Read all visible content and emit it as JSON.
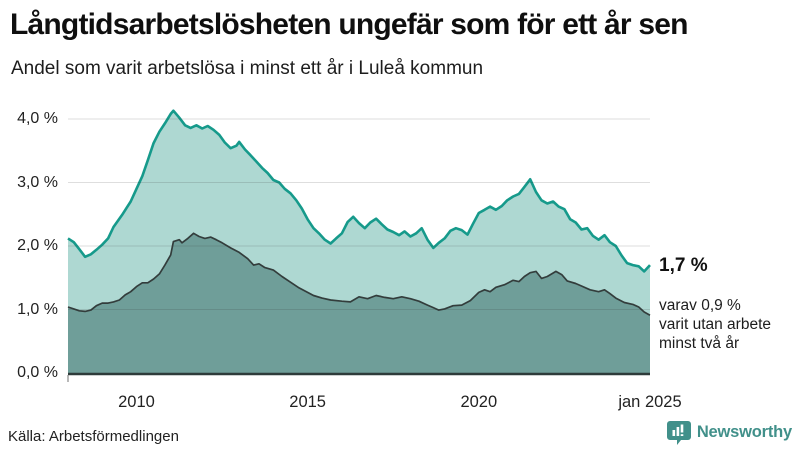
{
  "chart_data": {
    "type": "area",
    "title": "Långtidsarbetslösheten ungefär som för ett år sen",
    "subtitle": "Andel som varit arbetslösa i minst ett år i Luleå kommun",
    "xlabel": "",
    "ylabel": "",
    "unit": "%",
    "grid": true,
    "legend_position": "none",
    "x_range": [
      2008,
      2025
    ],
    "ylim": [
      0,
      4
    ],
    "yticks": [
      {
        "value": 0,
        "label": "0,0 %"
      },
      {
        "value": 1,
        "label": "1,0 %"
      },
      {
        "value": 2,
        "label": "2,0 %"
      },
      {
        "value": 3,
        "label": "3,0 %"
      },
      {
        "value": 4,
        "label": "4,0 %"
      }
    ],
    "xticks": [
      {
        "year": 2010,
        "label": "2010"
      },
      {
        "year": 2015,
        "label": "2015"
      },
      {
        "year": 2020,
        "label": "2020"
      },
      {
        "year": 2025,
        "label": "jan 2025"
      }
    ],
    "series": [
      {
        "name": "Andel som varit arbetslösa i minst ett år",
        "end_value": 1.7,
        "stroke": "#169a8b",
        "fill": "#aed8d2",
        "points": [
          [
            2008.0,
            2.12
          ],
          [
            2008.17,
            2.06
          ],
          [
            2008.33,
            1.95
          ],
          [
            2008.5,
            1.83
          ],
          [
            2008.67,
            1.87
          ],
          [
            2008.83,
            1.94
          ],
          [
            2009.0,
            2.02
          ],
          [
            2009.17,
            2.12
          ],
          [
            2009.33,
            2.3
          ],
          [
            2009.58,
            2.49
          ],
          [
            2009.83,
            2.7
          ],
          [
            2010.0,
            2.9
          ],
          [
            2010.17,
            3.1
          ],
          [
            2010.33,
            3.35
          ],
          [
            2010.5,
            3.62
          ],
          [
            2010.67,
            3.8
          ],
          [
            2010.83,
            3.93
          ],
          [
            2011.0,
            4.08
          ],
          [
            2011.08,
            4.13
          ],
          [
            2011.25,
            4.02
          ],
          [
            2011.42,
            3.9
          ],
          [
            2011.58,
            3.86
          ],
          [
            2011.75,
            3.9
          ],
          [
            2011.92,
            3.85
          ],
          [
            2012.08,
            3.89
          ],
          [
            2012.25,
            3.83
          ],
          [
            2012.42,
            3.75
          ],
          [
            2012.58,
            3.63
          ],
          [
            2012.75,
            3.54
          ],
          [
            2012.92,
            3.58
          ],
          [
            2013.0,
            3.64
          ],
          [
            2013.17,
            3.52
          ],
          [
            2013.33,
            3.43
          ],
          [
            2013.5,
            3.33
          ],
          [
            2013.67,
            3.23
          ],
          [
            2013.83,
            3.15
          ],
          [
            2014.0,
            3.04
          ],
          [
            2014.17,
            3.0
          ],
          [
            2014.33,
            2.9
          ],
          [
            2014.5,
            2.83
          ],
          [
            2014.67,
            2.72
          ],
          [
            2014.83,
            2.59
          ],
          [
            2015.0,
            2.42
          ],
          [
            2015.17,
            2.28
          ],
          [
            2015.33,
            2.2
          ],
          [
            2015.5,
            2.1
          ],
          [
            2015.67,
            2.04
          ],
          [
            2015.83,
            2.12
          ],
          [
            2016.0,
            2.2
          ],
          [
            2016.17,
            2.38
          ],
          [
            2016.33,
            2.46
          ],
          [
            2016.5,
            2.36
          ],
          [
            2016.67,
            2.28
          ],
          [
            2016.83,
            2.37
          ],
          [
            2017.0,
            2.43
          ],
          [
            2017.17,
            2.34
          ],
          [
            2017.33,
            2.26
          ],
          [
            2017.5,
            2.22
          ],
          [
            2017.67,
            2.17
          ],
          [
            2017.83,
            2.23
          ],
          [
            2018.0,
            2.15
          ],
          [
            2018.17,
            2.2
          ],
          [
            2018.33,
            2.28
          ],
          [
            2018.5,
            2.1
          ],
          [
            2018.67,
            1.97
          ],
          [
            2018.83,
            2.05
          ],
          [
            2019.0,
            2.12
          ],
          [
            2019.17,
            2.24
          ],
          [
            2019.33,
            2.28
          ],
          [
            2019.5,
            2.25
          ],
          [
            2019.67,
            2.18
          ],
          [
            2019.83,
            2.35
          ],
          [
            2020.0,
            2.52
          ],
          [
            2020.17,
            2.57
          ],
          [
            2020.33,
            2.62
          ],
          [
            2020.5,
            2.57
          ],
          [
            2020.67,
            2.63
          ],
          [
            2020.83,
            2.72
          ],
          [
            2021.0,
            2.78
          ],
          [
            2021.17,
            2.82
          ],
          [
            2021.33,
            2.93
          ],
          [
            2021.5,
            3.05
          ],
          [
            2021.67,
            2.85
          ],
          [
            2021.83,
            2.72
          ],
          [
            2022.0,
            2.67
          ],
          [
            2022.17,
            2.7
          ],
          [
            2022.33,
            2.62
          ],
          [
            2022.5,
            2.58
          ],
          [
            2022.67,
            2.42
          ],
          [
            2022.83,
            2.37
          ],
          [
            2023.0,
            2.26
          ],
          [
            2023.17,
            2.28
          ],
          [
            2023.33,
            2.16
          ],
          [
            2023.5,
            2.1
          ],
          [
            2023.67,
            2.17
          ],
          [
            2023.83,
            2.06
          ],
          [
            2024.0,
            2.0
          ],
          [
            2024.17,
            1.85
          ],
          [
            2024.33,
            1.73
          ],
          [
            2024.5,
            1.7
          ],
          [
            2024.67,
            1.68
          ],
          [
            2024.83,
            1.6
          ],
          [
            2025.0,
            1.7
          ]
        ]
      },
      {
        "name": "varav utan arbete minst två år",
        "end_value": 0.9,
        "stroke": "#333d3c",
        "fill": "#6f9e99",
        "points": [
          [
            2008.0,
            1.04
          ],
          [
            2008.17,
            1.01
          ],
          [
            2008.33,
            0.98
          ],
          [
            2008.5,
            0.97
          ],
          [
            2008.67,
            0.99
          ],
          [
            2008.83,
            1.06
          ],
          [
            2009.0,
            1.1
          ],
          [
            2009.17,
            1.1
          ],
          [
            2009.33,
            1.12
          ],
          [
            2009.5,
            1.15
          ],
          [
            2009.67,
            1.23
          ],
          [
            2009.83,
            1.28
          ],
          [
            2010.0,
            1.36
          ],
          [
            2010.17,
            1.42
          ],
          [
            2010.33,
            1.42
          ],
          [
            2010.5,
            1.48
          ],
          [
            2010.67,
            1.56
          ],
          [
            2010.83,
            1.7
          ],
          [
            2011.0,
            1.86
          ],
          [
            2011.08,
            2.07
          ],
          [
            2011.25,
            2.1
          ],
          [
            2011.33,
            2.05
          ],
          [
            2011.5,
            2.12
          ],
          [
            2011.67,
            2.2
          ],
          [
            2011.83,
            2.15
          ],
          [
            2012.0,
            2.12
          ],
          [
            2012.17,
            2.14
          ],
          [
            2012.33,
            2.1
          ],
          [
            2012.5,
            2.05
          ],
          [
            2012.75,
            1.97
          ],
          [
            2013.0,
            1.9
          ],
          [
            2013.25,
            1.8
          ],
          [
            2013.42,
            1.7
          ],
          [
            2013.58,
            1.72
          ],
          [
            2013.75,
            1.66
          ],
          [
            2014.0,
            1.62
          ],
          [
            2014.25,
            1.52
          ],
          [
            2014.5,
            1.43
          ],
          [
            2014.75,
            1.34
          ],
          [
            2015.0,
            1.27
          ],
          [
            2015.17,
            1.22
          ],
          [
            2015.42,
            1.18
          ],
          [
            2015.67,
            1.15
          ],
          [
            2016.0,
            1.13
          ],
          [
            2016.25,
            1.12
          ],
          [
            2016.5,
            1.2
          ],
          [
            2016.75,
            1.17
          ],
          [
            2017.0,
            1.22
          ],
          [
            2017.25,
            1.19
          ],
          [
            2017.5,
            1.17
          ],
          [
            2017.75,
            1.2
          ],
          [
            2018.0,
            1.17
          ],
          [
            2018.25,
            1.13
          ],
          [
            2018.5,
            1.07
          ],
          [
            2018.67,
            1.03
          ],
          [
            2018.83,
            0.99
          ],
          [
            2019.0,
            1.01
          ],
          [
            2019.25,
            1.06
          ],
          [
            2019.5,
            1.07
          ],
          [
            2019.75,
            1.14
          ],
          [
            2020.0,
            1.27
          ],
          [
            2020.17,
            1.31
          ],
          [
            2020.33,
            1.28
          ],
          [
            2020.5,
            1.35
          ],
          [
            2020.75,
            1.39
          ],
          [
            2021.0,
            1.46
          ],
          [
            2021.17,
            1.44
          ],
          [
            2021.33,
            1.52
          ],
          [
            2021.5,
            1.58
          ],
          [
            2021.67,
            1.6
          ],
          [
            2021.83,
            1.49
          ],
          [
            2022.0,
            1.52
          ],
          [
            2022.25,
            1.6
          ],
          [
            2022.42,
            1.55
          ],
          [
            2022.58,
            1.45
          ],
          [
            2022.83,
            1.41
          ],
          [
            2023.0,
            1.37
          ],
          [
            2023.25,
            1.31
          ],
          [
            2023.5,
            1.28
          ],
          [
            2023.67,
            1.31
          ],
          [
            2023.83,
            1.25
          ],
          [
            2024.0,
            1.18
          ],
          [
            2024.25,
            1.11
          ],
          [
            2024.5,
            1.08
          ],
          [
            2024.67,
            1.04
          ],
          [
            2024.83,
            0.96
          ],
          [
            2025.0,
            0.91
          ]
        ]
      }
    ]
  },
  "annotation": {
    "value_label": "1,7 %",
    "lines": [
      "varav 0,9 %",
      "varit utan arbete",
      "minst två år"
    ]
  },
  "footer": {
    "source": "Källa: Arbetsförmedlingen",
    "brand": "Newsworthy"
  },
  "colors": {
    "accent": "#169a8b",
    "area_light": "#aed8d2",
    "area_dark": "#6f9e99",
    "brand": "#41908a",
    "gridline": "#dcdcdc",
    "baseline": "#2e3b3a"
  }
}
